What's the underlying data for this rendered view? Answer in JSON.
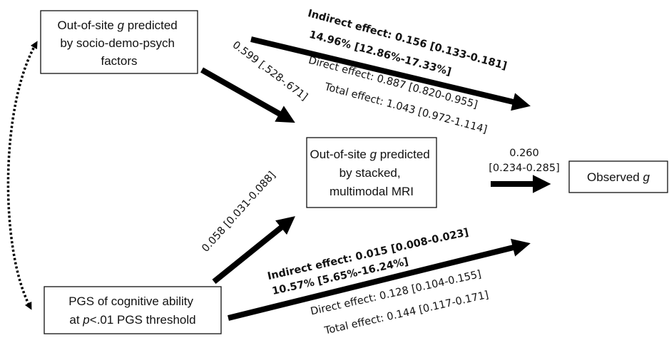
{
  "nodes": [
    {
      "lines": [
        [
          "Out-of-site ",
          "g",
          " predicted"
        ],
        [
          "by socio-demo-psych"
        ],
        [
          "factors"
        ]
      ]
    },
    {
      "lines": [
        [
          "Out-of-site ",
          "g",
          " predicted"
        ],
        [
          "by stacked,"
        ],
        [
          "multimodal MRI"
        ]
      ]
    },
    {
      "lines": [
        [
          "PGS of cognitive ability"
        ],
        [
          "at ",
          "p",
          "<.01 PGS threshold"
        ]
      ]
    },
    {
      "lines": [
        [
          "Observed ",
          "g"
        ]
      ]
    }
  ],
  "edges": [
    {
      "label": "0.599 [.528-.671]"
    },
    {
      "lines": [
        "Indirect effect: 0.156 [0.133-0.181]",
        "14.96% [12.86%-17.33%]",
        "Direct effect: 0.887 [0.820-0.955]",
        "Total effect: 1.043 [0.972-1.114]"
      ]
    },
    {
      "lines": [
        "0.260",
        "[0.234-0.285]"
      ]
    },
    {
      "label": "0.058 [0.031-0.088]"
    },
    {
      "lines": [
        "Indirect effect: 0.015 [0.008-0.023]",
        "10.57% [5.65%-16.24%]",
        "Direct effect: 0.128 [0.104-0.155]",
        "Total effect: 0.144 [0.117-0.171]"
      ]
    }
  ]
}
